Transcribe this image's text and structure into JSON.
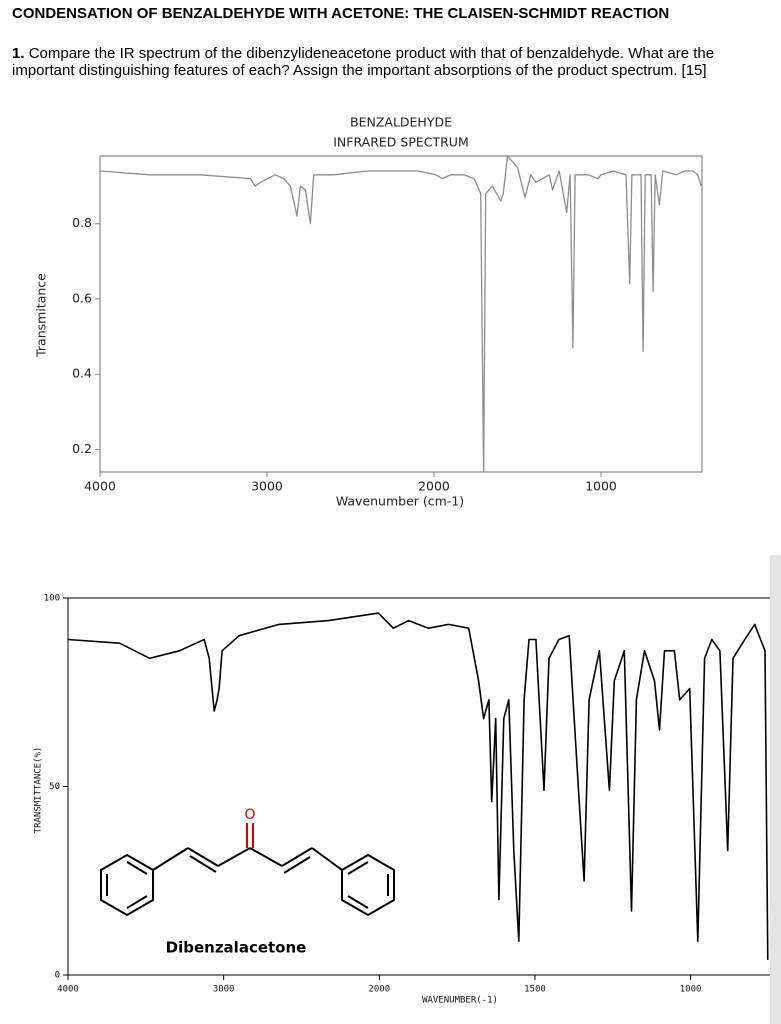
{
  "header": {
    "title": "CONDENSATION OF BENZALDEHYDE WITH ACETONE: THE CLAISEN-SCHMIDT REACTION"
  },
  "question": {
    "number": "1.",
    "text": "Compare the IR spectrum of the dibenzylideneacetone product with that of benzaldehyde. What are the important distinguishing features of each? Assign the important absorptions of the product spectrum. [15]"
  },
  "chart_data": [
    {
      "type": "line",
      "title": "BENZALDEHYDE",
      "subtitle": "INFRARED SPECTRUM",
      "x_label": "Wavenumber (cm-1)",
      "y_label": "Transmitance",
      "color": "#8c8c8c",
      "xlim": [
        4000,
        395
      ],
      "xticks": [
        4000,
        3000,
        2000,
        1000
      ],
      "ylim": [
        0.14,
        0.98
      ],
      "yticks": [
        0.2,
        0.4,
        0.6,
        0.8
      ],
      "x": [
        4000,
        3700,
        3400,
        3100,
        3070,
        3040,
        2950,
        2900,
        2860,
        2820,
        2800,
        2770,
        2740,
        2720,
        2600,
        2400,
        2100,
        1990,
        1950,
        1900,
        1820,
        1760,
        1720,
        1703,
        1690,
        1650,
        1600,
        1585,
        1560,
        1500,
        1455,
        1420,
        1390,
        1310,
        1290,
        1250,
        1205,
        1185,
        1168,
        1155,
        1075,
        1020,
        1000,
        925,
        850,
        828,
        815,
        760,
        748,
        735,
        700,
        688,
        675,
        650,
        630,
        550,
        500,
        450,
        420,
        400
      ],
      "values": [
        0.94,
        0.93,
        0.93,
        0.92,
        0.9,
        0.91,
        0.93,
        0.92,
        0.9,
        0.82,
        0.9,
        0.89,
        0.8,
        0.93,
        0.93,
        0.94,
        0.94,
        0.93,
        0.92,
        0.93,
        0.93,
        0.92,
        0.88,
        0.14,
        0.88,
        0.9,
        0.86,
        0.88,
        0.98,
        0.95,
        0.87,
        0.93,
        0.91,
        0.93,
        0.89,
        0.94,
        0.83,
        0.93,
        0.47,
        0.93,
        0.93,
        0.92,
        0.93,
        0.94,
        0.93,
        0.64,
        0.93,
        0.93,
        0.46,
        0.93,
        0.93,
        0.62,
        0.93,
        0.85,
        0.94,
        0.93,
        0.94,
        0.94,
        0.93,
        0.9
      ]
    },
    {
      "type": "line",
      "x_label": "WAVENUMBER(-1)",
      "y_label": "TRANSMITTANCE(%)",
      "color": "#000000",
      "annotations": [
        "Dibenzalacetone",
        "O"
      ],
      "xlim": [
        4000,
        745
      ],
      "xticks": [
        4000,
        3000,
        2000,
        1500,
        1000
      ],
      "ylim": [
        0,
        100
      ],
      "yticks": [
        0,
        50,
        100
      ],
      "x": [
        4000,
        3668,
        3476,
        3284,
        3125,
        3093,
        3061,
        3042,
        3029,
        3010,
        2901,
        2645,
        2326,
        2006,
        1955,
        1906,
        1842,
        1777,
        1713,
        1681,
        1665,
        1648,
        1639,
        1626,
        1616,
        1600,
        1584,
        1568,
        1552,
        1535,
        1519,
        1497,
        1471,
        1455,
        1423,
        1390,
        1358,
        1342,
        1326,
        1293,
        1261,
        1245,
        1213,
        1190,
        1174,
        1148,
        1116,
        1100,
        1084,
        1052,
        1035,
        1003,
        977,
        955,
        932,
        906,
        881,
        864,
        826,
        794,
        761,
        752
      ],
      "values": [
        89,
        88,
        84,
        86,
        89,
        84,
        70,
        73,
        76,
        86,
        90,
        93,
        94,
        96,
        92,
        94,
        92,
        93,
        92,
        78,
        68,
        73,
        46,
        68,
        20,
        68,
        73,
        33,
        9,
        73,
        89,
        89,
        49,
        84,
        89,
        90,
        46,
        25,
        73,
        86,
        49,
        78,
        86,
        17,
        73,
        86,
        78,
        65,
        86,
        86,
        73,
        76,
        9,
        84,
        89,
        86,
        33,
        84,
        89,
        93,
        86,
        4
      ]
    }
  ]
}
